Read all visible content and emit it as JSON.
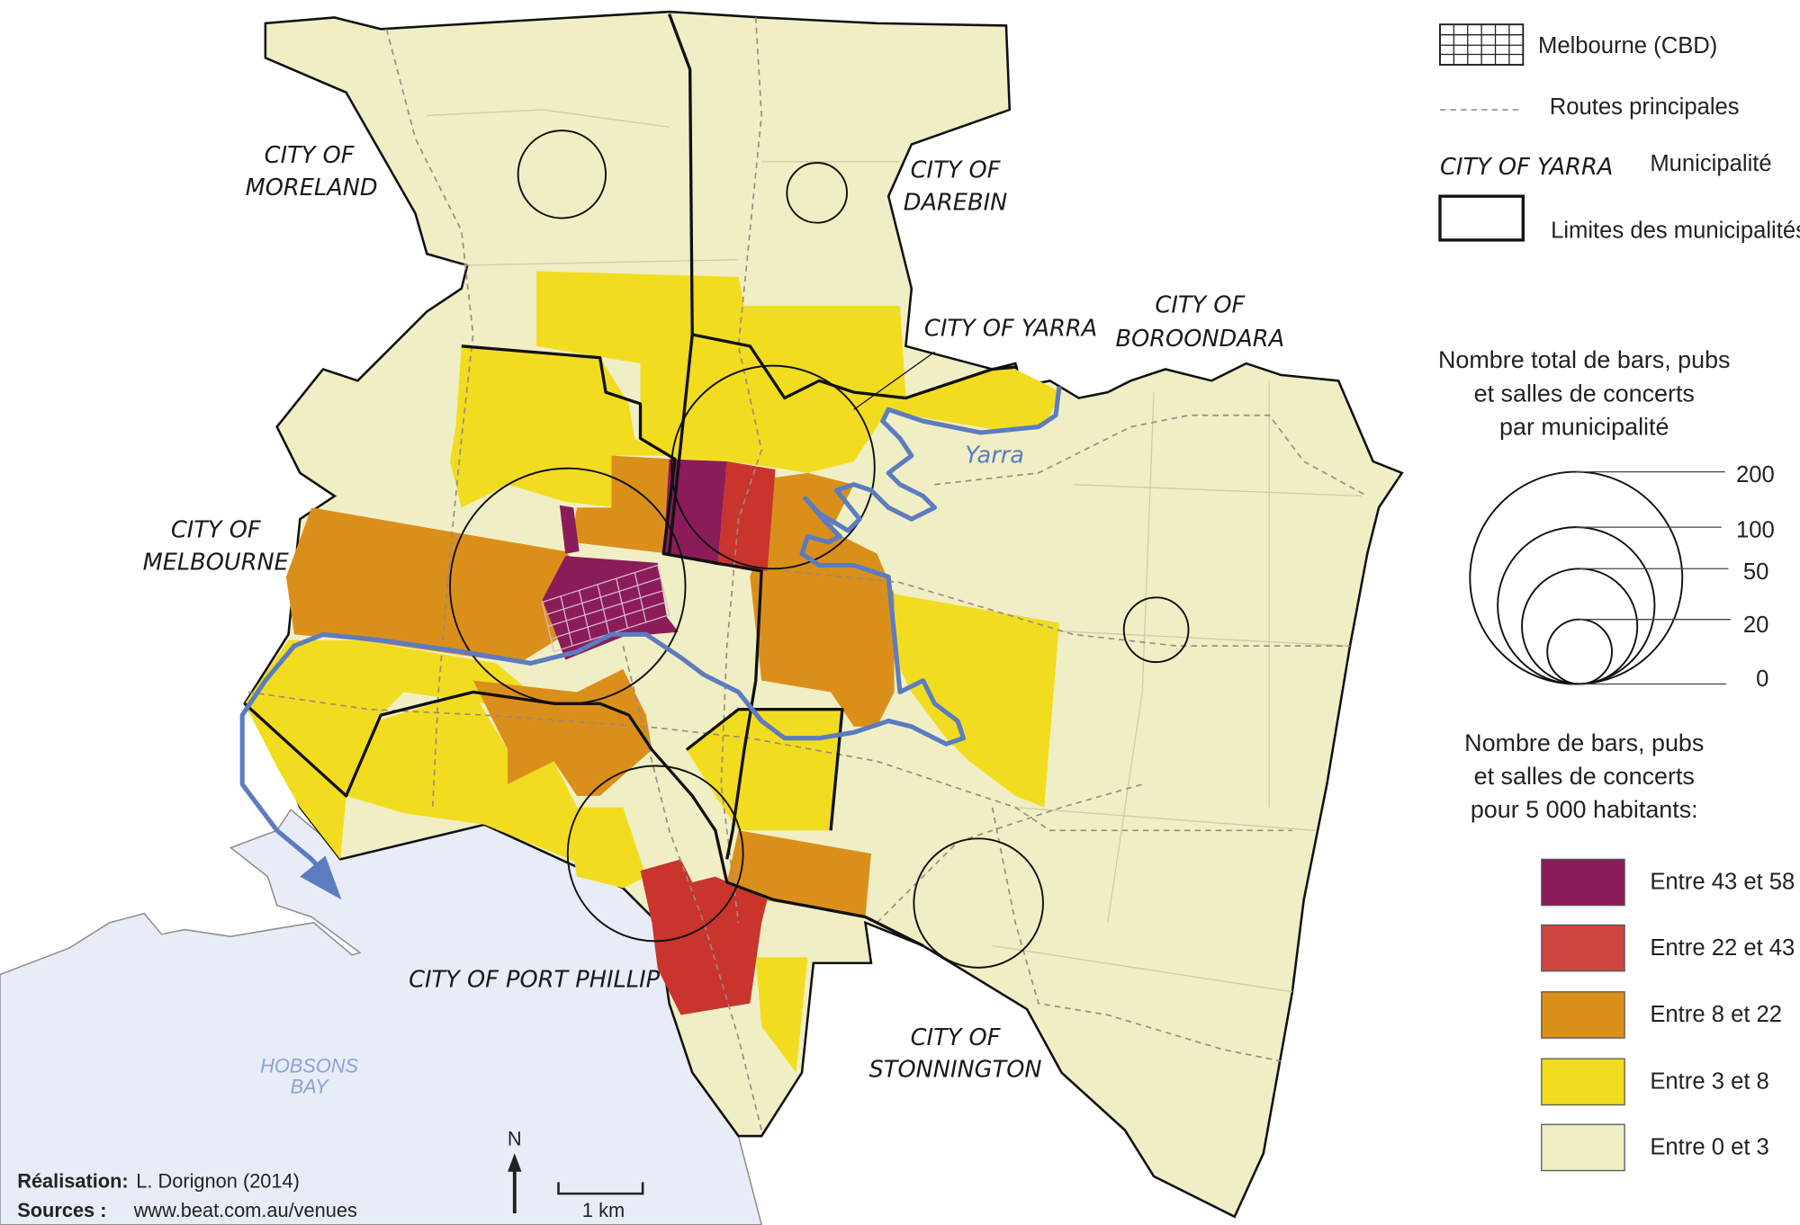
{
  "colors": {
    "class_43_58": "#8b1c5a",
    "class_22_43": "#cc4642",
    "class_8_22": "#db8f1b",
    "class_3_8": "#f2dc1f",
    "class_0_3": "#f0eec5",
    "water": "#e8ecf7",
    "river": "#5b7cc0"
  },
  "map": {
    "municipalities": {
      "moreland": [
        "CITY OF",
        "MORELAND"
      ],
      "darebin": [
        "CITY OF",
        "DAREBIN"
      ],
      "yarra": "CITY OF YARRA",
      "boroondara": [
        "CITY OF",
        "BOROONDARA"
      ],
      "melbourne": [
        "CITY OF",
        "MELBOURNE"
      ],
      "port_phillip": "CITY OF PORT PHILLIP",
      "stonnington": [
        "CITY OF",
        "STONNINGTON"
      ]
    },
    "river_label": "Yarra",
    "bay_label": [
      "HOBSONS",
      "BAY"
    ],
    "north_label": "N",
    "scale_label": "1 km"
  },
  "legend": {
    "cbd": "Melbourne (CBD)",
    "roads": "Routes principales",
    "municipality_sample": "CITY OF YARRA",
    "municipality": "Municipalité",
    "boundaries": "Limites des municipalités",
    "total_title": [
      "Nombre total de bars, pubs",
      "et salles de concerts",
      "par municipalité"
    ],
    "total_values": [
      "200",
      "100",
      "50",
      "20",
      "0"
    ],
    "rate_title": [
      "Nombre de bars, pubs",
      "et salles de concerts",
      "pour 5 000 habitants:"
    ],
    "classes": [
      {
        "label": "Entre 43 et 58",
        "color": "#8b1c5a"
      },
      {
        "label": "Entre 22 et 43",
        "color": "#cc4642"
      },
      {
        "label": "Entre 8 et 22",
        "color": "#db8f1b"
      },
      {
        "label": "Entre 3 et 8",
        "color": "#f2dc1f"
      },
      {
        "label": "Entre 0 et 3",
        "color": "#f0eec5"
      }
    ]
  },
  "credits": {
    "author_label": "Réalisation:",
    "author": "L. Dorignon (2014)",
    "sources_label": "Sources :",
    "sources": "www.beat.com.au/venues"
  }
}
